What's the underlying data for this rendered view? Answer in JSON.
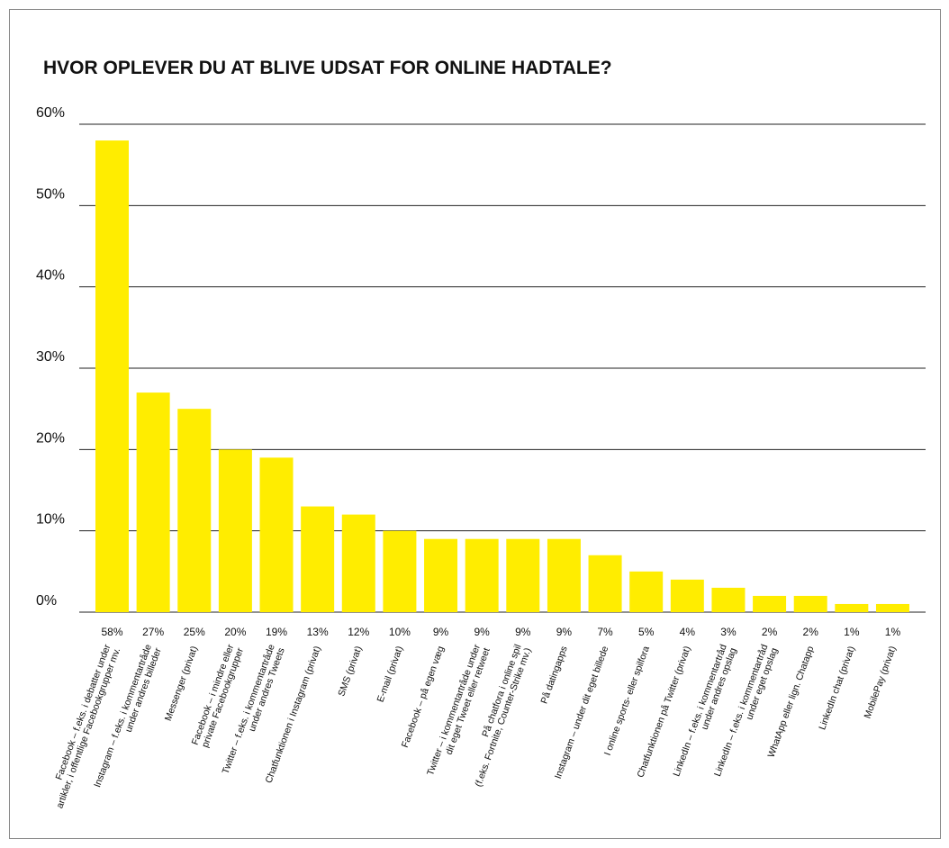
{
  "chart_data": {
    "type": "bar",
    "title": "HVOR OPLEVER DU AT BLIVE UDSAT FOR ONLINE HADTALE?",
    "categories": [
      "Facebook – f.eks. i debatter under\nartikler, i offentlige Facebookgrupper mv.",
      "Instagram – f.eks. i kommentartråde\nunder andres billeder",
      "Messenger (privat)",
      "Facebook – i mindre eller\nprivate Facebookgrupper",
      "Twitter – f.eks. i kommentartråde\nunder andres Tweets",
      "Chatfunktionen i Instagram (privat)",
      "SMS (privat)",
      "E-mail (privat)",
      "Facebook – på egen væg",
      "Twitter – i kommentartråde under\ndit eget Tweet eller retweet",
      "På chatfora i online spil\n(f.eks. Fortnite, Counter-Strike mv.)",
      "På datingapps",
      "Instagram – under dit eget billede",
      "I online sports- eller spilfora",
      "Chatfunktionen på Twitter (privat)",
      "LinkedIn – f.eks. i kommentartråd\nunder andres opslag",
      "LinkedIn – f.eks. i kommentartråd\nunder eget opslag",
      "WhatApp eller lign. Chatapp",
      "LinkedIn chat (privat)",
      "MobilePay (privat)"
    ],
    "values": [
      58,
      27,
      25,
      20,
      19,
      13,
      12,
      10,
      9,
      9,
      9,
      9,
      7,
      5,
      4,
      3,
      2,
      2,
      1,
      1
    ],
    "value_labels": [
      "58%",
      "27%",
      "25%",
      "20%",
      "19%",
      "13%",
      "12%",
      "10%",
      "9%",
      "9%",
      "9%",
      "9%",
      "7%",
      "5%",
      "4%",
      "3%",
      "2%",
      "2%",
      "1%",
      "1%"
    ],
    "color": "#ffed00",
    "ylim": [
      0,
      60
    ],
    "yticks": [
      {
        "value": 0,
        "label": "0%"
      },
      {
        "value": 10,
        "label": "10%"
      },
      {
        "value": 20,
        "label": "20%"
      },
      {
        "value": 30,
        "label": "30%"
      },
      {
        "value": 40,
        "label": "40%"
      },
      {
        "value": 50,
        "label": "50%"
      },
      {
        "value": 60,
        "label": "60%"
      }
    ],
    "grid": true
  }
}
